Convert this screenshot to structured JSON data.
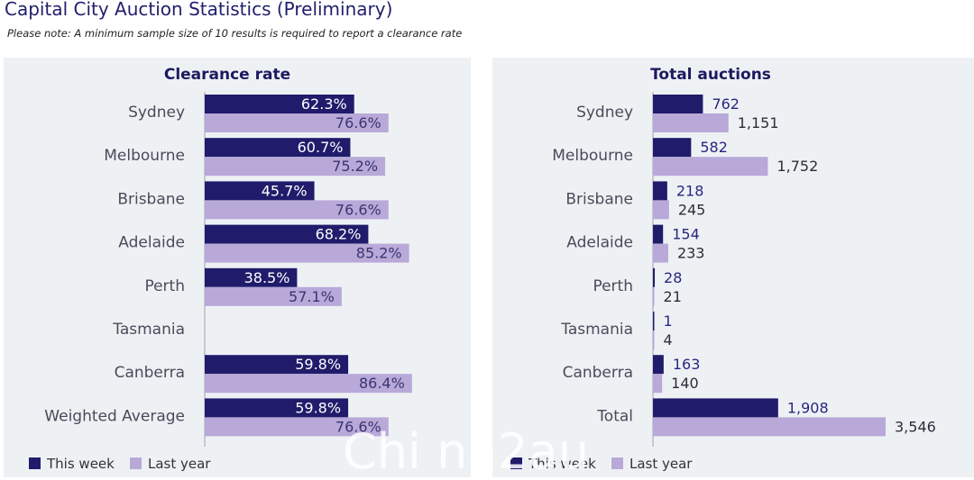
{
  "header": {
    "title": "Capital City Auction Statistics (Preliminary)",
    "note": "Please note: A minimum sample size of 10 results is required to report a clearance rate"
  },
  "colors": {
    "this_week": "#201c6b",
    "last_year": "#b8a9d9",
    "panel_bg": "#eef1f4",
    "text_dark": "#1c1a5e"
  },
  "legend": {
    "this_week": "This week",
    "last_year": "Last year"
  },
  "watermark": "Chi  na2au",
  "chart_data": [
    {
      "type": "bar",
      "orientation": "horizontal",
      "title": "Clearance rate",
      "categories": [
        "Sydney",
        "Melbourne",
        "Brisbane",
        "Adelaide",
        "Perth",
        "Tasmania",
        "Canberra",
        "Weighted Average"
      ],
      "series": [
        {
          "name": "This week",
          "values": [
            62.3,
            60.7,
            45.7,
            68.2,
            38.5,
            null,
            59.8,
            59.8
          ],
          "labels": [
            "62.3%",
            "60.7%",
            "45.7%",
            "68.2%",
            "38.5%",
            "",
            "59.8%",
            "59.8%"
          ]
        },
        {
          "name": "Last year",
          "values": [
            76.6,
            75.2,
            76.6,
            85.2,
            57.1,
            null,
            86.4,
            76.6
          ],
          "labels": [
            "76.6%",
            "75.2%",
            "76.6%",
            "85.2%",
            "57.1%",
            "",
            "86.4%",
            "76.6%"
          ]
        }
      ],
      "xlim": [
        0,
        100
      ],
      "grid": false,
      "legend": "bottom-left"
    },
    {
      "type": "bar",
      "orientation": "horizontal",
      "title": "Total auctions",
      "categories": [
        "Sydney",
        "Melbourne",
        "Brisbane",
        "Adelaide",
        "Perth",
        "Tasmania",
        "Canberra",
        "Total"
      ],
      "series": [
        {
          "name": "This week",
          "values": [
            762,
            582,
            218,
            154,
            28,
            1,
            163,
            1908
          ],
          "labels": [
            "762",
            "582",
            "218",
            "154",
            "28",
            "1",
            "163",
            "1,908"
          ]
        },
        {
          "name": "Last year",
          "values": [
            1151,
            1752,
            245,
            233,
            21,
            4,
            140,
            3546
          ],
          "labels": [
            "1,151",
            "1,752",
            "245",
            "233",
            "21",
            "4",
            "140",
            "3,546"
          ]
        }
      ],
      "xlim": [
        0,
        3546
      ],
      "grid": false,
      "legend": "bottom-left"
    }
  ]
}
